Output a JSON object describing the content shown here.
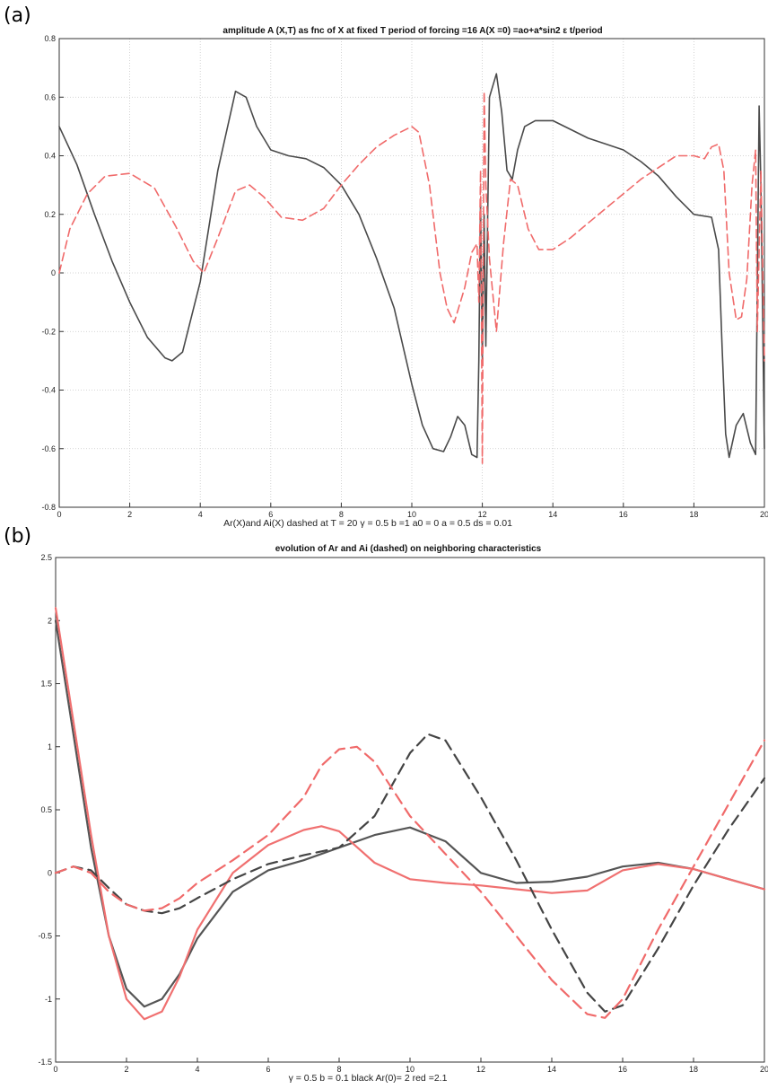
{
  "chart_data": [
    {
      "type": "line",
      "panel_label": "(a)",
      "title": "amplitude A (X,T) as fnc of X at fixed T  period of forcing =16  A(X =0) =ao+a*sin2 ε t/period",
      "xlabel": "Ar(X)and Ai(X) dashed at T = 20  γ = 0.5  b =1  a0 = 0  a = 0.5  ds = 0.01",
      "ylabel": "",
      "xlim": [
        0,
        20
      ],
      "ylim": [
        -0.8,
        0.8
      ],
      "grid": true,
      "xticks": [
        "0",
        "2",
        "4",
        "6",
        "8",
        "10",
        "12",
        "14",
        "16",
        "18",
        "20"
      ],
      "yticks": [
        "-0.8",
        "-0.6",
        "-0.4",
        "-0.2",
        "0",
        "0.2",
        "0.4",
        "0.6",
        "0.8"
      ],
      "series": [
        {
          "style": "solid",
          "color": "#4a4a4a",
          "x": [
            0,
            0.5,
            1,
            1.5,
            2,
            2.5,
            3,
            3.2,
            3.5,
            4,
            4.5,
            5,
            5.3,
            5.6,
            6,
            6.5,
            7,
            7.5,
            8,
            8.5,
            9,
            9.5,
            10,
            10.3,
            10.6,
            10.9,
            11.1,
            11.3,
            11.5,
            11.7,
            11.85,
            11.9,
            11.95,
            12.0,
            12.05,
            12.1,
            12.2,
            12.4,
            12.55,
            12.7,
            12.85,
            13.0,
            13.2,
            13.5,
            14,
            14.5,
            15,
            15.5,
            16,
            16.5,
            17,
            17.5,
            18,
            18.5,
            18.7,
            18.8,
            18.9,
            19.0,
            19.2,
            19.4,
            19.6,
            19.75,
            19.85,
            19.9,
            20
          ],
          "y": [
            0.5,
            0.37,
            0.2,
            0.04,
            -0.1,
            -0.22,
            -0.29,
            -0.3,
            -0.27,
            -0.03,
            0.35,
            0.62,
            0.6,
            0.5,
            0.42,
            0.4,
            0.39,
            0.36,
            0.3,
            0.2,
            0.05,
            -0.12,
            -0.38,
            -0.52,
            -0.6,
            -0.61,
            -0.56,
            -0.49,
            -0.52,
            -0.62,
            -0.63,
            -0.3,
            0.25,
            -0.3,
            0.2,
            -0.25,
            0.6,
            0.68,
            0.55,
            0.35,
            0.32,
            0.42,
            0.5,
            0.52,
            0.52,
            0.49,
            0.46,
            0.44,
            0.42,
            0.38,
            0.33,
            0.26,
            0.2,
            0.19,
            0.08,
            -0.25,
            -0.55,
            -0.63,
            -0.52,
            -0.48,
            -0.58,
            -0.62,
            0.57,
            0.3,
            -0.6
          ]
        },
        {
          "style": "dashed",
          "color": "#f06a6a",
          "x": [
            0,
            0.3,
            0.8,
            1.3,
            2,
            2.7,
            3.3,
            3.8,
            4.1,
            4.5,
            5,
            5.4,
            5.8,
            6.3,
            6.9,
            7.5,
            8,
            8.5,
            9,
            9.5,
            10,
            10.2,
            10.5,
            10.8,
            11.0,
            11.2,
            11.5,
            11.7,
            11.85,
            11.9,
            11.95,
            12.0,
            12.05,
            12.1,
            12.2,
            12.4,
            12.6,
            12.8,
            13.0,
            13.3,
            13.6,
            14,
            14.5,
            15,
            15.5,
            16,
            16.5,
            17,
            17.5,
            18,
            18.3,
            18.5,
            18.7,
            18.85,
            19.0,
            19.2,
            19.35,
            19.5,
            19.65,
            19.75,
            19.8,
            19.9,
            20
          ],
          "y": [
            0.0,
            0.15,
            0.27,
            0.33,
            0.34,
            0.29,
            0.16,
            0.04,
            0.0,
            0.12,
            0.28,
            0.3,
            0.26,
            0.19,
            0.18,
            0.22,
            0.3,
            0.37,
            0.43,
            0.47,
            0.5,
            0.48,
            0.3,
            0.0,
            -0.12,
            -0.17,
            -0.05,
            0.07,
            0.1,
            -0.1,
            0.35,
            -0.65,
            0.62,
            0.3,
            0.05,
            -0.2,
            0.1,
            0.32,
            0.3,
            0.15,
            0.08,
            0.08,
            0.12,
            0.17,
            0.22,
            0.27,
            0.32,
            0.36,
            0.4,
            0.4,
            0.39,
            0.43,
            0.44,
            0.35,
            0.0,
            -0.16,
            -0.15,
            -0.02,
            0.3,
            0.42,
            -0.2,
            0.35,
            -0.3
          ]
        }
      ]
    },
    {
      "type": "line",
      "panel_label": "(b)",
      "title": "evolution of Ar and Ai (dashed) on  neighboring characteristics",
      "xlabel": "γ = 0.5   b  =  0.1 black Ar(0)= 2 red =2.1",
      "ylabel": "",
      "xlim": [
        0,
        20
      ],
      "ylim": [
        -1.5,
        2.5
      ],
      "grid": false,
      "xticks": [
        "0",
        "2",
        "4",
        "6",
        "8",
        "10",
        "12",
        "14",
        "16",
        "18",
        "20"
      ],
      "yticks": [
        "-1.5",
        "-1",
        "-0.5",
        "0",
        "0.5",
        "1",
        "1.5",
        "2",
        "2.5"
      ],
      "series": [
        {
          "style": "solid",
          "color": "#555555",
          "x": [
            0,
            0.5,
            1,
            1.5,
            2,
            2.5,
            3,
            3.5,
            4,
            5,
            6,
            7,
            8,
            9,
            10,
            11,
            12,
            13,
            14,
            15,
            16,
            17,
            18,
            19,
            20
          ],
          "y": [
            2.0,
            1.1,
            0.2,
            -0.5,
            -0.92,
            -1.06,
            -1.0,
            -0.8,
            -0.52,
            -0.15,
            0.02,
            0.1,
            0.2,
            0.3,
            0.36,
            0.25,
            0.0,
            -0.08,
            -0.07,
            -0.03,
            0.05,
            0.08,
            0.03,
            -0.05,
            -0.13
          ]
        },
        {
          "style": "solid",
          "color": "#f07070",
          "x": [
            0,
            0.5,
            1,
            1.5,
            2,
            2.5,
            3,
            3.5,
            4,
            5,
            6,
            7,
            7.5,
            8,
            9,
            10,
            11,
            12,
            13,
            14,
            15,
            16,
            17,
            18,
            19,
            20
          ],
          "y": [
            2.1,
            1.2,
            0.3,
            -0.5,
            -1.0,
            -1.16,
            -1.1,
            -0.82,
            -0.45,
            0.0,
            0.22,
            0.34,
            0.37,
            0.33,
            0.08,
            -0.05,
            -0.08,
            -0.1,
            -0.13,
            -0.16,
            -0.14,
            0.02,
            0.07,
            0.03,
            -0.05,
            -0.13
          ]
        },
        {
          "style": "dashed",
          "color": "#444444",
          "x": [
            0,
            0.5,
            1,
            1.5,
            2,
            2.5,
            3,
            3.5,
            4,
            5,
            6,
            7,
            8,
            9,
            9.5,
            10,
            10.5,
            11,
            12,
            13,
            14,
            15,
            15.5,
            16,
            17,
            18,
            19,
            20
          ],
          "y": [
            0.0,
            0.05,
            0.02,
            -0.12,
            -0.25,
            -0.3,
            -0.32,
            -0.28,
            -0.2,
            -0.05,
            0.07,
            0.14,
            0.2,
            0.45,
            0.7,
            0.95,
            1.1,
            1.05,
            0.6,
            0.1,
            -0.45,
            -0.95,
            -1.1,
            -1.05,
            -0.6,
            -0.1,
            0.35,
            0.75
          ]
        },
        {
          "style": "dashed",
          "color": "#f06a6a",
          "x": [
            0,
            0.5,
            1,
            1.5,
            2,
            2.5,
            3,
            3.5,
            4,
            5,
            6,
            7,
            7.5,
            8,
            8.5,
            9,
            10,
            11,
            12,
            13,
            14,
            15,
            15.5,
            16,
            17,
            18,
            19,
            20
          ],
          "y": [
            0.0,
            0.05,
            0.0,
            -0.15,
            -0.25,
            -0.3,
            -0.28,
            -0.2,
            -0.08,
            0.1,
            0.3,
            0.6,
            0.85,
            0.98,
            1.0,
            0.88,
            0.45,
            0.15,
            -0.15,
            -0.5,
            -0.85,
            -1.12,
            -1.15,
            -1.0,
            -0.45,
            0.05,
            0.55,
            1.05
          ]
        }
      ]
    }
  ]
}
